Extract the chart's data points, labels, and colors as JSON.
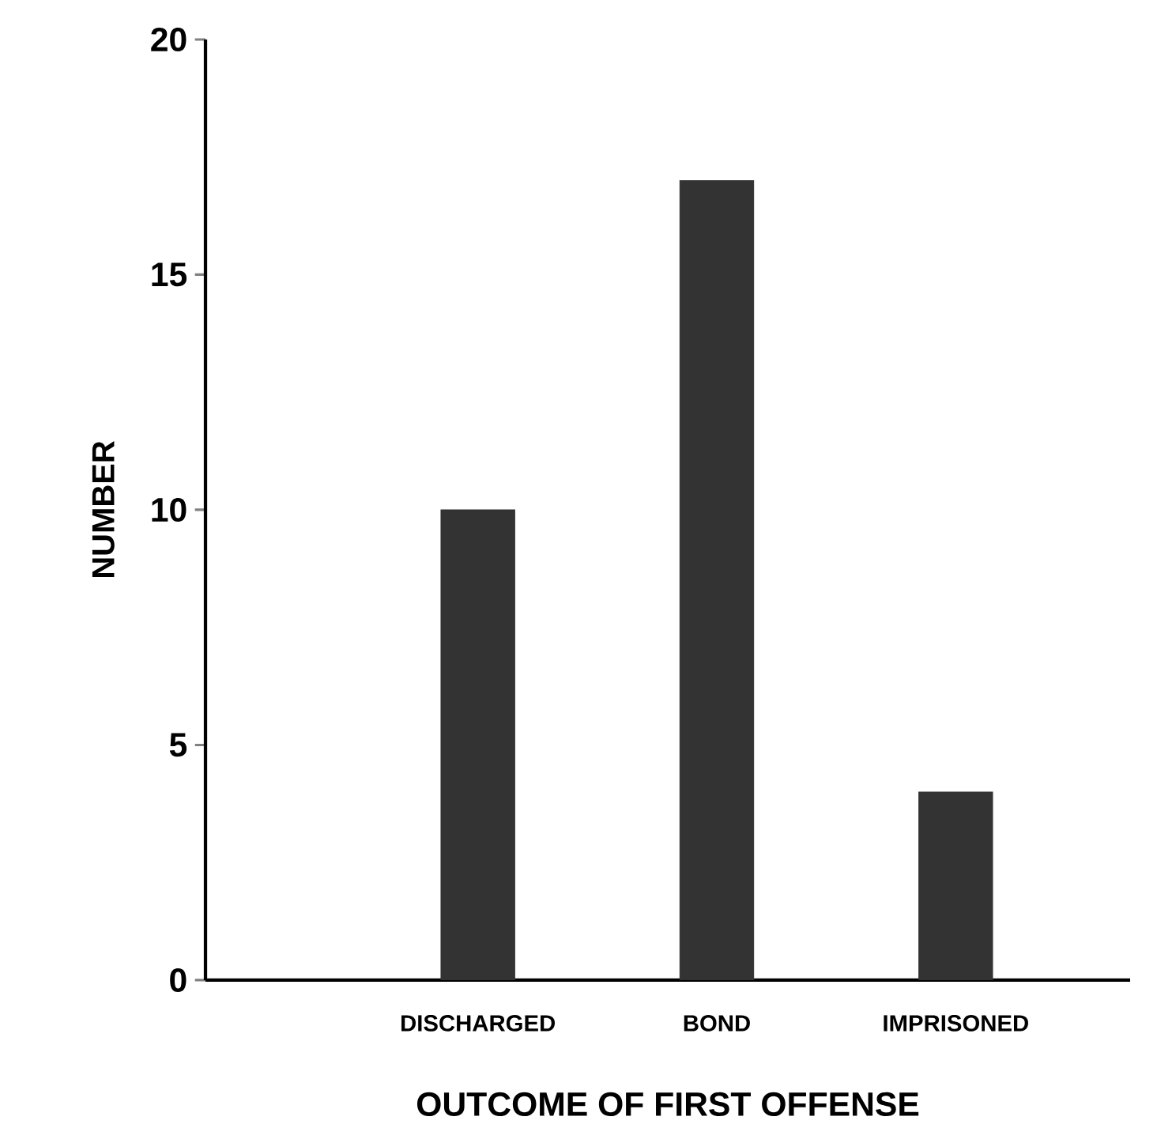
{
  "chart_data": {
    "type": "bar",
    "xlabel": "OUTCOME  OF  FIRST  OFFENSE",
    "ylabel": "NUMBER",
    "categories": [
      "DISCHARGED",
      "BOND",
      "IMPRISONED"
    ],
    "values": [
      10,
      17,
      4
    ],
    "color": "#333333",
    "ylim": [
      0,
      20
    ],
    "yticks": [
      0,
      5,
      10,
      15,
      20
    ]
  }
}
